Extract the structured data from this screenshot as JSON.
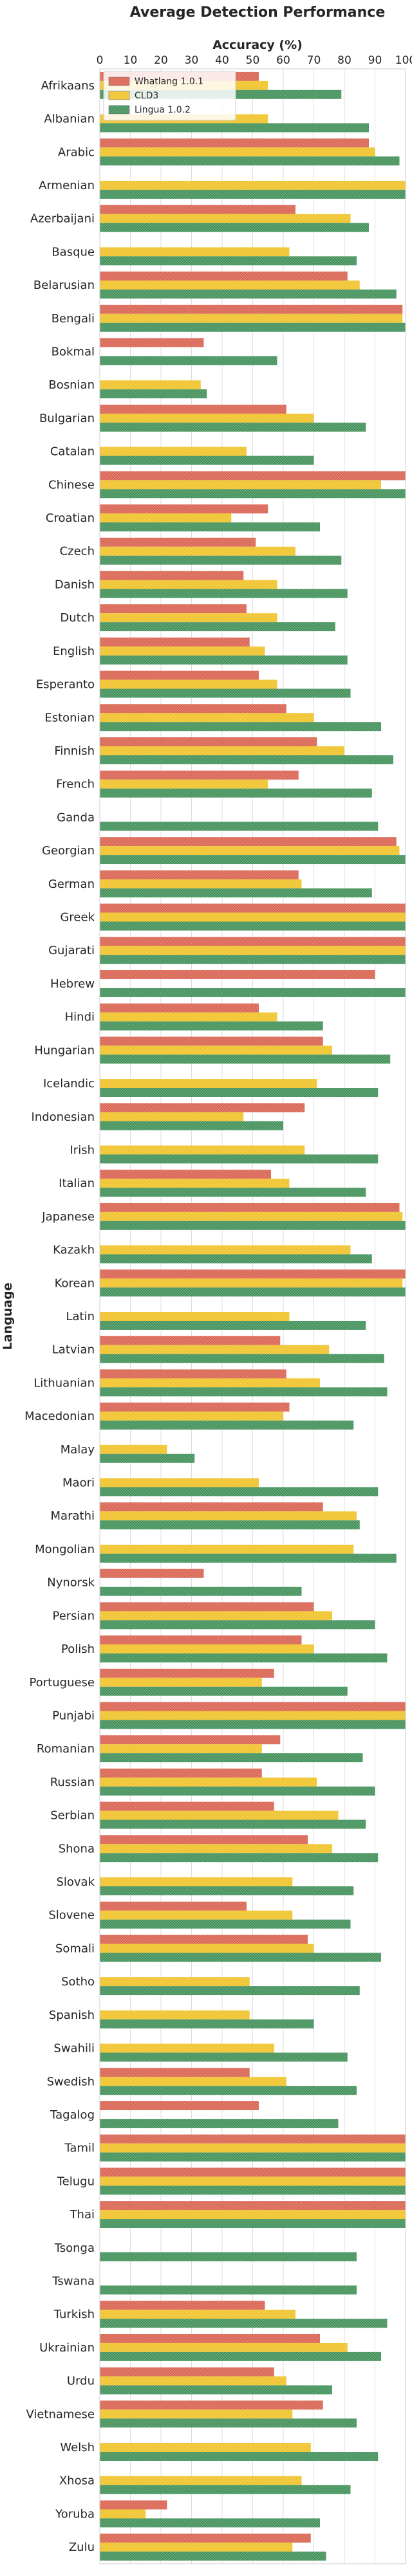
{
  "chart_data": {
    "type": "bar",
    "orientation": "horizontal",
    "title": "Average Detection Performance",
    "xlabel": "Accuracy (%)",
    "ylabel": "Language",
    "xlim": [
      0,
      100
    ],
    "xticks": [
      0,
      10,
      20,
      30,
      40,
      50,
      60,
      70,
      80,
      90,
      100
    ],
    "grid": true,
    "legend_position": "top-left",
    "categories": [
      "Afrikaans",
      "Albanian",
      "Arabic",
      "Armenian",
      "Azerbaijani",
      "Basque",
      "Belarusian",
      "Bengali",
      "Bokmal",
      "Bosnian",
      "Bulgarian",
      "Catalan",
      "Chinese",
      "Croatian",
      "Czech",
      "Danish",
      "Dutch",
      "English",
      "Esperanto",
      "Estonian",
      "Finnish",
      "French",
      "Ganda",
      "Georgian",
      "German",
      "Greek",
      "Gujarati",
      "Hebrew",
      "Hindi",
      "Hungarian",
      "Icelandic",
      "Indonesian",
      "Irish",
      "Italian",
      "Japanese",
      "Kazakh",
      "Korean",
      "Latin",
      "Latvian",
      "Lithuanian",
      "Macedonian",
      "Malay",
      "Maori",
      "Marathi",
      "Mongolian",
      "Nynorsk",
      "Persian",
      "Polish",
      "Portuguese",
      "Punjabi",
      "Romanian",
      "Russian",
      "Serbian",
      "Shona",
      "Slovak",
      "Slovene",
      "Somali",
      "Sotho",
      "Spanish",
      "Swahili",
      "Swedish",
      "Tagalog",
      "Tamil",
      "Telugu",
      "Thai",
      "Tsonga",
      "Tswana",
      "Turkish",
      "Ukrainian",
      "Urdu",
      "Vietnamese",
      "Welsh",
      "Xhosa",
      "Yoruba",
      "Zulu"
    ],
    "series": [
      {
        "name": "Whatlang 1.0.1",
        "color": "#d9614f",
        "values": [
          52,
          0,
          88,
          0,
          64,
          0,
          81,
          99,
          34,
          0,
          61,
          0,
          100,
          55,
          51,
          47,
          48,
          49,
          52,
          61,
          71,
          65,
          0,
          97,
          65,
          100,
          100,
          90,
          52,
          73,
          0,
          67,
          0,
          56,
          98,
          0,
          100,
          0,
          59,
          61,
          62,
          0,
          0,
          73,
          0,
          34,
          70,
          66,
          57,
          100,
          59,
          53,
          57,
          68,
          0,
          48,
          68,
          0,
          0,
          0,
          49,
          52,
          100,
          100,
          100,
          0,
          0,
          54,
          72,
          57,
          73,
          0,
          0,
          22,
          69
        ]
      },
      {
        "name": "CLD3",
        "color": "#f0c227",
        "values": [
          55,
          55,
          90,
          100,
          82,
          62,
          85,
          99,
          0,
          33,
          70,
          48,
          92,
          43,
          64,
          58,
          58,
          54,
          58,
          70,
          80,
          55,
          0,
          98,
          66,
          100,
          100,
          0,
          58,
          76,
          71,
          47,
          67,
          62,
          99,
          82,
          99,
          62,
          75,
          72,
          60,
          22,
          52,
          84,
          83,
          0,
          76,
          70,
          53,
          100,
          53,
          71,
          78,
          76,
          63,
          63,
          70,
          49,
          49,
          57,
          61,
          0,
          100,
          100,
          100,
          0,
          0,
          64,
          81,
          61,
          63,
          69,
          66,
          15,
          63
        ]
      },
      {
        "name": "Lingua 1.0.2",
        "color": "#3f8f57",
        "values": [
          79,
          88,
          98,
          100,
          88,
          84,
          97,
          100,
          58,
          35,
          87,
          70,
          100,
          72,
          79,
          81,
          77,
          81,
          82,
          92,
          96,
          89,
          91,
          100,
          89,
          100,
          100,
          100,
          73,
          95,
          91,
          60,
          91,
          87,
          100,
          89,
          100,
          87,
          93,
          94,
          83,
          31,
          91,
          85,
          97,
          66,
          90,
          94,
          81,
          100,
          86,
          90,
          87,
          91,
          83,
          82,
          92,
          85,
          70,
          81,
          84,
          78,
          100,
          100,
          100,
          84,
          84,
          94,
          92,
          76,
          84,
          91,
          82,
          72,
          74
        ]
      }
    ]
  }
}
